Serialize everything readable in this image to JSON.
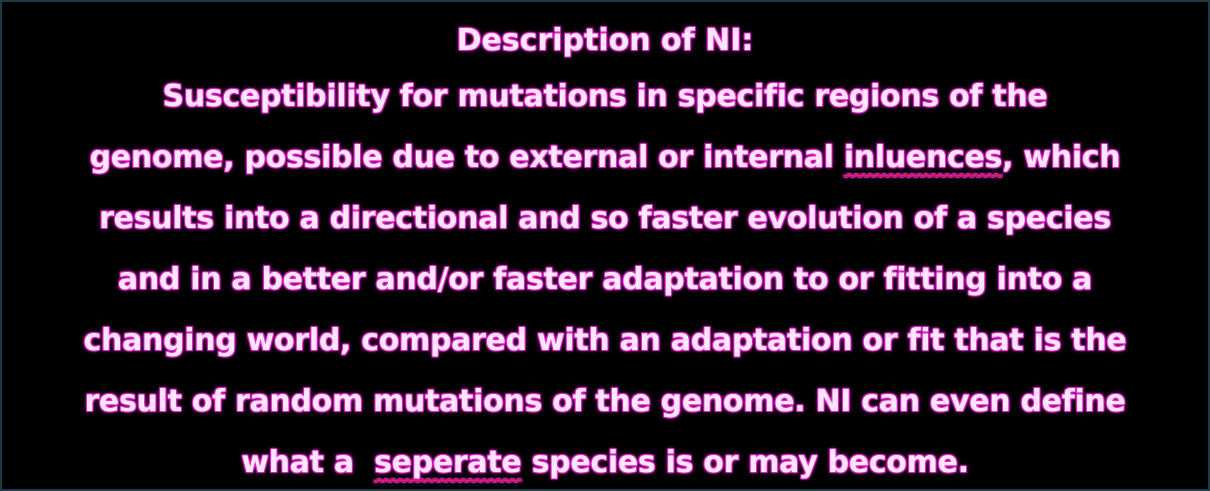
{
  "slide": {
    "title": "Description of NI:",
    "lines": [
      [
        "Susceptibility for mutations in specific regions of the"
      ],
      [
        "genome, possible due to external or internal ",
        "inluences",
        ", which"
      ],
      [
        "results into a directional and so faster evolution of a species"
      ],
      [
        "and in a better and/or faster adaptation to or fitting into a"
      ],
      [
        "changing world, compared with an adaptation or fit that is the"
      ],
      [
        "result of random mutations of the genome. NI can even define"
      ],
      [
        "what a  ",
        "seperate",
        " species is or may become."
      ]
    ],
    "text_color": "#ffe6ff",
    "glow_color": "#ff3fe0",
    "spellcheck_color": "#e02020"
  }
}
